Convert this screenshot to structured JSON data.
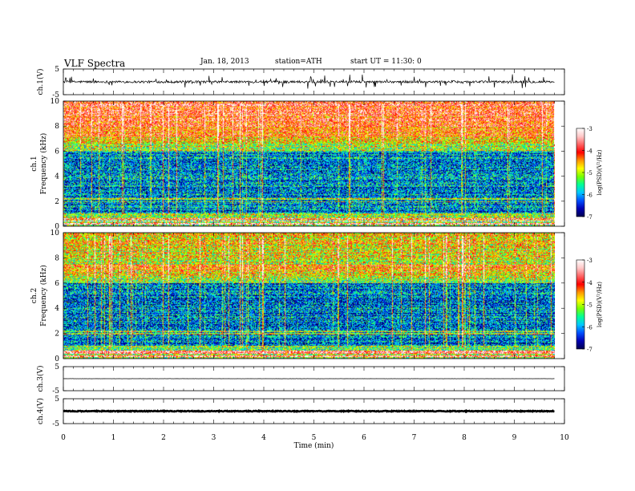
{
  "header": {
    "title": "VLF  Spectra",
    "date": "Jan. 18, 2013",
    "station": "station=ATH",
    "start": "start  UT  =   11:30: 0"
  },
  "colors": {
    "colormap": [
      "#000050",
      "#0000b4",
      "#0050ff",
      "#00c8ff",
      "#00ff96",
      "#78ff00",
      "#ffff00",
      "#ff9600",
      "#ff0000",
      "#ff6464",
      "#ffc8c8",
      "#ffffff"
    ],
    "trace": "#000000"
  },
  "chart_data": [
    {
      "type": "line",
      "panel": "ch1-waveform",
      "ylabel": "ch.1(V)",
      "ylim": [
        -5,
        5
      ],
      "yticks": [
        "5",
        "-5"
      ],
      "description_of_values": "noisy trace near 0 V with spikes up to about +/-2.5 V",
      "baseline": 0
    },
    {
      "type": "heatmap",
      "panel": "ch1-spectrogram",
      "ylabel_line1": "ch.1",
      "ylabel_line2": "Frequency  (kHz)",
      "ylim": [
        0,
        10
      ],
      "yticks": [
        "0",
        "2",
        "4",
        "6",
        "8",
        "10"
      ],
      "colorbar": {
        "label": "log(PSD)(V²/Hz)",
        "ticks": [
          "-3",
          "-4",
          "-5",
          "-6",
          "-7"
        ],
        "range": [
          -7,
          -3
        ]
      }
    },
    {
      "type": "heatmap",
      "panel": "ch2-spectrogram",
      "ylabel_line1": "ch.2",
      "ylabel_line2": "Frequency  (kHz)",
      "ylim": [
        0,
        10
      ],
      "yticks": [
        "0",
        "2",
        "4",
        "6",
        "8",
        "10"
      ],
      "colorbar": {
        "label": "log(PSD)(V²/Hz)",
        "ticks": [
          "-3",
          "-4",
          "-5",
          "-6",
          "-7"
        ],
        "range": [
          -7,
          -3
        ]
      }
    },
    {
      "type": "line",
      "panel": "ch3-waveform",
      "ylabel": "ch.3(V)",
      "ylim": [
        -5,
        5
      ],
      "yticks": [
        "5",
        "-5"
      ],
      "baseline": 0
    },
    {
      "type": "line",
      "panel": "ch4-waveform",
      "ylabel": "ch.4(V)",
      "ylim": [
        -5,
        5
      ],
      "yticks": [
        "5",
        "-5"
      ],
      "baseline": 0
    }
  ],
  "xaxis": {
    "label": "Time  (min)",
    "xlim": [
      0,
      10
    ],
    "ticks": [
      "0",
      "1",
      "2",
      "3",
      "4",
      "5",
      "6",
      "7",
      "8",
      "9",
      "10"
    ],
    "data_end": 9.8
  }
}
